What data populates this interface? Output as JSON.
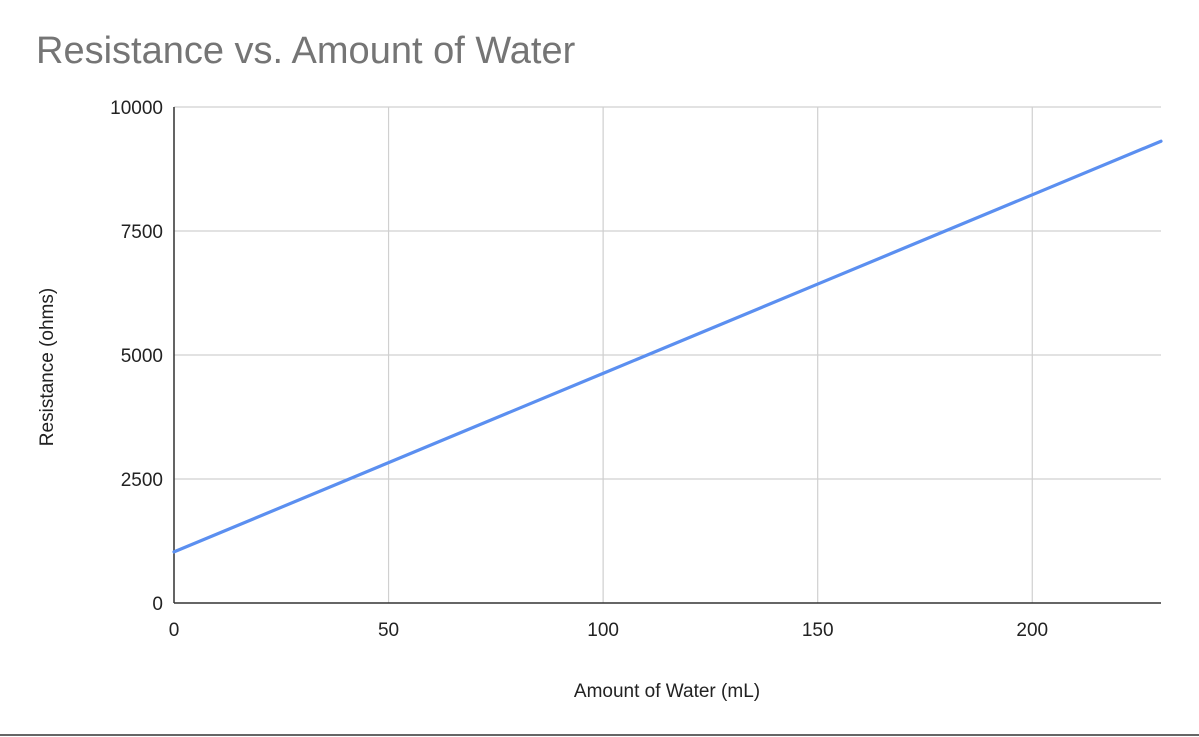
{
  "colors": {
    "series": "#5b8ff0",
    "grid": "#d0d0d0",
    "axis": "#333333",
    "title": "#757575"
  },
  "chart_data": {
    "type": "line",
    "title": "Resistance vs. Amount of Water",
    "xlabel": "Amount of Water (mL)",
    "ylabel": "Resistance (ohms)",
    "xlim": [
      0,
      230
    ],
    "ylim": [
      0,
      10000
    ],
    "xticks": [
      0,
      50,
      100,
      150,
      200
    ],
    "yticks": [
      0,
      2500,
      5000,
      7500,
      10000
    ],
    "grid": true,
    "legend": "none",
    "series": [
      {
        "x": [
          0,
          50,
          100,
          150,
          200,
          230
        ],
        "y": [
          1030,
          2830,
          4630,
          6430,
          8230,
          9310
        ]
      }
    ]
  }
}
